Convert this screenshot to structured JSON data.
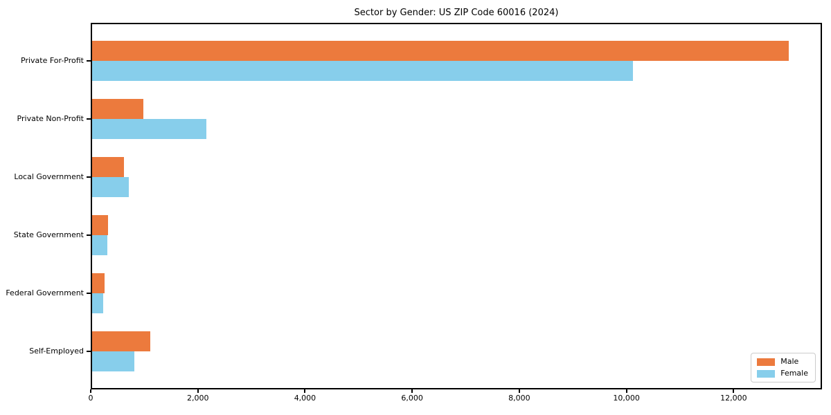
{
  "chart_data": {
    "type": "bar",
    "orientation": "horizontal",
    "title": "Sector by Gender: US ZIP Code 60016 (2024)",
    "categories": [
      "Private For-Profit",
      "Private Non-Profit",
      "Local Government",
      "State Government",
      "Federal Government",
      "Self-Employed"
    ],
    "series": [
      {
        "name": "Male",
        "color": "#EC7A3D",
        "values": [
          13000,
          960,
          600,
          300,
          230,
          1080
        ]
      },
      {
        "name": "Female",
        "color": "#87CEEB",
        "values": [
          10100,
          2130,
          690,
          285,
          200,
          790
        ]
      }
    ],
    "xlim": [
      0,
      13650
    ],
    "xticks": [
      0,
      2000,
      4000,
      6000,
      8000,
      10000,
      12000
    ],
    "xtick_labels": [
      "0",
      "2,000",
      "4,000",
      "6,000",
      "8,000",
      "10,000",
      "12,000"
    ],
    "xlabel": "",
    "ylabel": "",
    "grid": false,
    "legend_position": "lower right",
    "frame_color": "#000000",
    "background_color": "#ffffff"
  }
}
